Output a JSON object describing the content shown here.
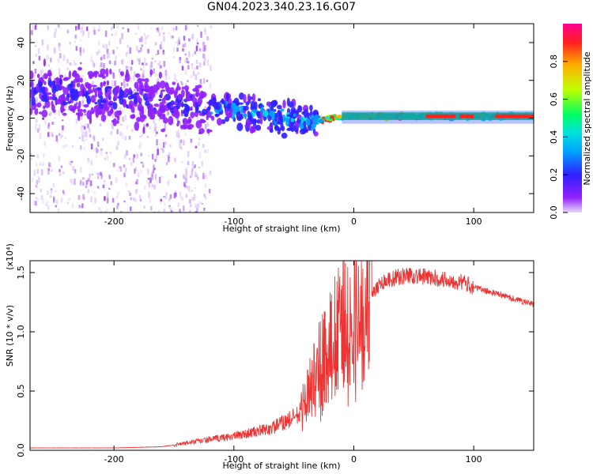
{
  "title": "GN04.2023.340.23.16.G07",
  "chart_data": [
    {
      "type": "heatmap",
      "xlabel": "Height of straight line (km)",
      "ylabel": "Frequency (Hz)",
      "xlim": [
        -270,
        150
      ],
      "ylim": [
        -50,
        50
      ],
      "xticks": [
        -200,
        -100,
        0,
        100
      ],
      "yticks": [
        -40,
        -20,
        0,
        20,
        40
      ],
      "colorbar": {
        "label": "Normalized spectral amplitude",
        "range": [
          0,
          1
        ],
        "ticks": [
          "0.0",
          "0.2",
          "0.4",
          "0.6",
          "0.8"
        ],
        "colormap": [
          "#e8d8f8",
          "#9020ff",
          "#3020ff",
          "#00a0ff",
          "#00e0e0",
          "#00ff60",
          "#c0ff00",
          "#ffb000",
          "#ff2020",
          "#ff0090"
        ]
      },
      "ridge": [
        {
          "x": -270,
          "y": 15
        },
        {
          "x": -220,
          "y": 12
        },
        {
          "x": -170,
          "y": 9
        },
        {
          "x": -140,
          "y": 6
        },
        {
          "x": -100,
          "y": 5
        },
        {
          "x": -60,
          "y": 0
        },
        {
          "x": -35,
          "y": -2
        },
        {
          "x": -20,
          "y": 0
        },
        {
          "x": 0,
          "y": 1
        },
        {
          "x": 50,
          "y": 1
        },
        {
          "x": 100,
          "y": 1
        },
        {
          "x": 150,
          "y": 1
        }
      ]
    },
    {
      "type": "line",
      "xlabel": "Height of straight line (km)",
      "ylabel": "SNR (10 * v/v)",
      "multiplier": "(x10⁴)",
      "xlim": [
        -270,
        150
      ],
      "ylim": [
        0,
        1.6
      ],
      "xticks": [
        -200,
        -100,
        0,
        100
      ],
      "yticks": [
        "0.0",
        "0.5",
        "1.0",
        "1.5"
      ],
      "series": [
        {
          "color": "#ee3333",
          "envelope": [
            {
              "x": -270,
              "y": 0.02
            },
            {
              "x": -200,
              "y": 0.02
            },
            {
              "x": -160,
              "y": 0.03
            },
            {
              "x": -140,
              "y": 0.06
            },
            {
              "x": -100,
              "y": 0.12
            },
            {
              "x": -70,
              "y": 0.18
            },
            {
              "x": -45,
              "y": 0.3
            },
            {
              "x": -35,
              "y": 0.55
            },
            {
              "x": -25,
              "y": 0.8
            },
            {
              "x": -15,
              "y": 1.0
            },
            {
              "x": -5,
              "y": 1.15
            },
            {
              "x": 10,
              "y": 1.3
            },
            {
              "x": 25,
              "y": 1.43
            },
            {
              "x": 45,
              "y": 1.48
            },
            {
              "x": 70,
              "y": 1.45
            },
            {
              "x": 90,
              "y": 1.42
            },
            {
              "x": 105,
              "y": 1.36
            },
            {
              "x": 130,
              "y": 1.29
            },
            {
              "x": 150,
              "y": 1.23
            }
          ]
        }
      ]
    }
  ]
}
